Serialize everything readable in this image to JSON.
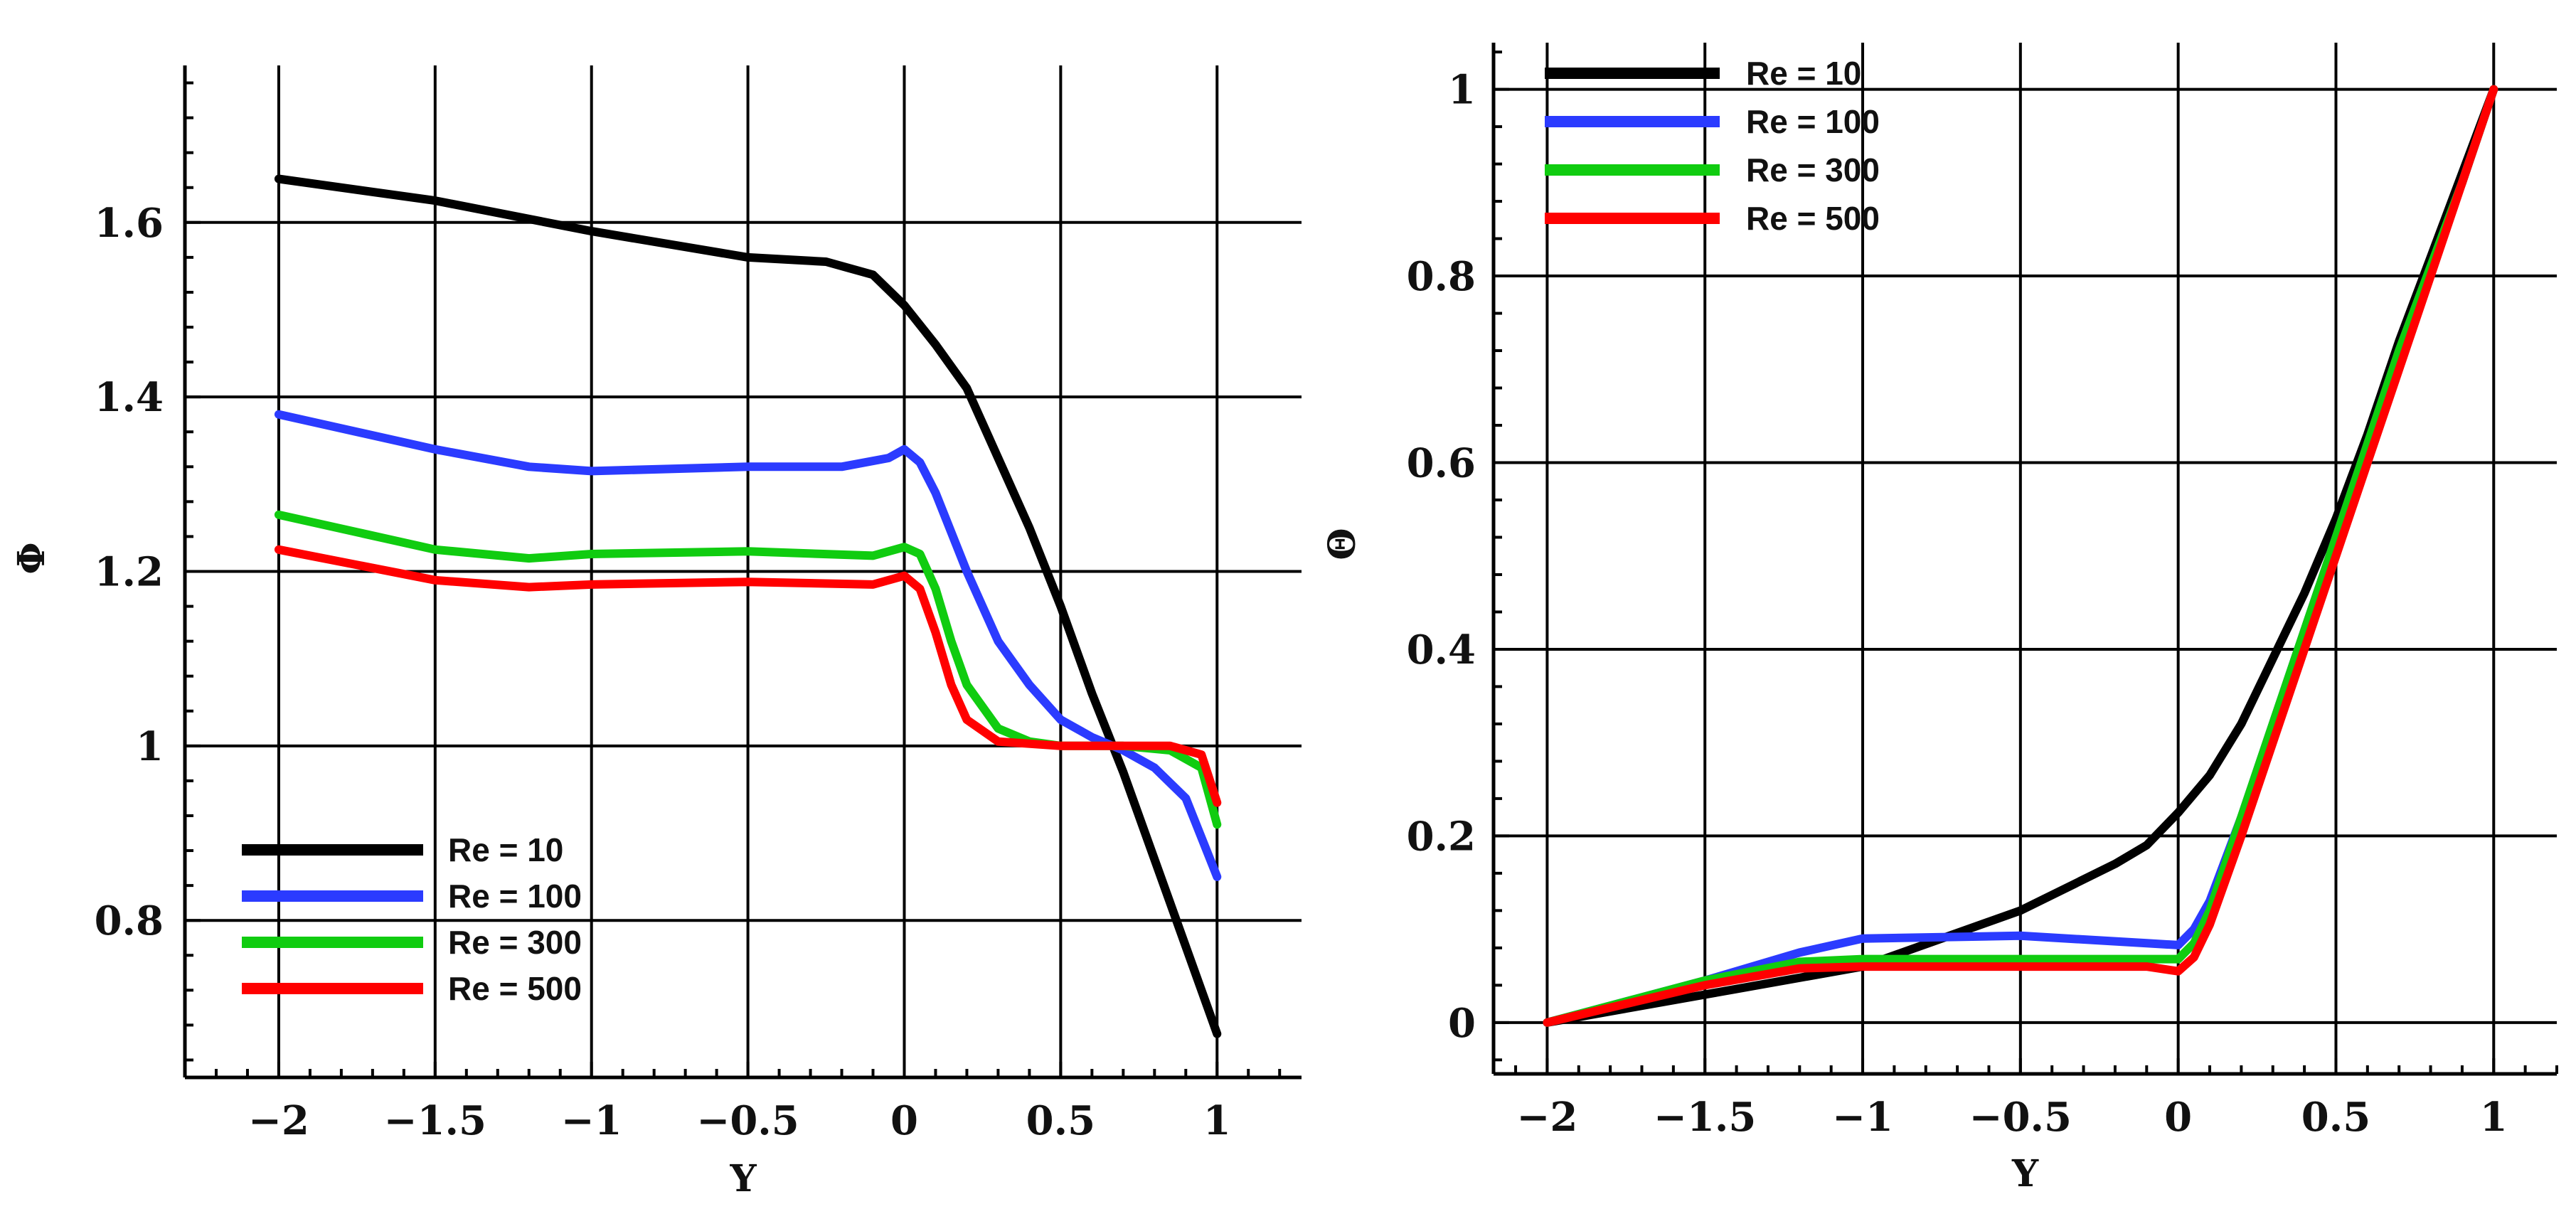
{
  "chart_data": [
    {
      "type": "line",
      "xlabel": "Y",
      "ylabel": "Φ",
      "xlim": [
        -2.3,
        1.27
      ],
      "ylim": [
        0.62,
        1.78
      ],
      "x_ticks": [
        -2,
        -1.5,
        -1,
        -0.5,
        0,
        0.5,
        1
      ],
      "x_tick_labels": [
        "−2",
        "−1.5",
        "−1",
        "−0.5",
        "0",
        "0.5",
        "1"
      ],
      "y_ticks": [
        0.8,
        1,
        1.2,
        1.4,
        1.6
      ],
      "y_tick_labels": [
        "0.8",
        "1",
        "1.2",
        "1.4",
        "1.6"
      ],
      "grid": true,
      "legend_position": "bottom-left",
      "series": [
        {
          "name": "Re = 10",
          "color": "#000000",
          "points": [
            [
              -2,
              1.65
            ],
            [
              -1.5,
              1.625
            ],
            [
              -1,
              1.59
            ],
            [
              -0.5,
              1.56
            ],
            [
              -0.25,
              1.555
            ],
            [
              -0.1,
              1.54
            ],
            [
              0,
              1.505
            ],
            [
              0.1,
              1.46
            ],
            [
              0.2,
              1.41
            ],
            [
              0.3,
              1.33
            ],
            [
              0.4,
              1.25
            ],
            [
              0.5,
              1.16
            ],
            [
              0.6,
              1.06
            ],
            [
              0.7,
              0.97
            ],
            [
              0.8,
              0.87
            ],
            [
              0.9,
              0.77
            ],
            [
              1,
              0.67
            ]
          ]
        },
        {
          "name": "Re = 100",
          "color": "#2b3bff",
          "points": [
            [
              -2,
              1.38
            ],
            [
              -1.5,
              1.34
            ],
            [
              -1.2,
              1.32
            ],
            [
              -1,
              1.315
            ],
            [
              -0.5,
              1.32
            ],
            [
              -0.2,
              1.32
            ],
            [
              -0.05,
              1.33
            ],
            [
              0,
              1.34
            ],
            [
              0.05,
              1.325
            ],
            [
              0.1,
              1.29
            ],
            [
              0.2,
              1.2
            ],
            [
              0.3,
              1.12
            ],
            [
              0.4,
              1.07
            ],
            [
              0.5,
              1.03
            ],
            [
              0.6,
              1.01
            ],
            [
              0.7,
              0.995
            ],
            [
              0.8,
              0.975
            ],
            [
              0.9,
              0.94
            ],
            [
              1,
              0.85
            ]
          ]
        },
        {
          "name": "Re = 300",
          "color": "#10cc10",
          "points": [
            [
              -2,
              1.265
            ],
            [
              -1.5,
              1.225
            ],
            [
              -1.2,
              1.215
            ],
            [
              -1,
              1.22
            ],
            [
              -0.5,
              1.223
            ],
            [
              -0.1,
              1.218
            ],
            [
              0,
              1.228
            ],
            [
              0.05,
              1.22
            ],
            [
              0.1,
              1.18
            ],
            [
              0.15,
              1.12
            ],
            [
              0.2,
              1.07
            ],
            [
              0.3,
              1.02
            ],
            [
              0.4,
              1.005
            ],
            [
              0.5,
              1.0
            ],
            [
              0.7,
              1.0
            ],
            [
              0.85,
              0.995
            ],
            [
              0.95,
              0.975
            ],
            [
              1,
              0.91
            ]
          ]
        },
        {
          "name": "Re = 500",
          "color": "#ff0000",
          "points": [
            [
              -2,
              1.225
            ],
            [
              -1.5,
              1.19
            ],
            [
              -1.2,
              1.182
            ],
            [
              -1,
              1.185
            ],
            [
              -0.5,
              1.188
            ],
            [
              -0.1,
              1.185
            ],
            [
              0,
              1.195
            ],
            [
              0.05,
              1.18
            ],
            [
              0.1,
              1.13
            ],
            [
              0.15,
              1.07
            ],
            [
              0.2,
              1.03
            ],
            [
              0.3,
              1.005
            ],
            [
              0.5,
              1.0
            ],
            [
              0.85,
              1.0
            ],
            [
              0.95,
              0.99
            ],
            [
              1,
              0.935
            ]
          ]
        }
      ]
    },
    {
      "type": "line",
      "xlabel": "Y",
      "ylabel": "Θ",
      "xlim": [
        -2.17,
        1.2
      ],
      "ylim": [
        -0.055,
        1.05
      ],
      "x_ticks": [
        -2,
        -1.5,
        -1,
        -0.5,
        0,
        0.5,
        1
      ],
      "x_tick_labels": [
        "−2",
        "−1.5",
        "−1",
        "−0.5",
        "0",
        "0.5",
        "1"
      ],
      "y_ticks": [
        0,
        0.2,
        0.4,
        0.6,
        0.8,
        1
      ],
      "y_tick_labels": [
        "0",
        "0.2",
        "0.4",
        "0.6",
        "0.8",
        "1"
      ],
      "grid": true,
      "legend_position": "top-left",
      "series": [
        {
          "name": "Re = 10",
          "color": "#000000",
          "points": [
            [
              -2,
              0
            ],
            [
              -1.5,
              0.03
            ],
            [
              -1,
              0.06
            ],
            [
              -0.5,
              0.12
            ],
            [
              -0.2,
              0.17
            ],
            [
              -0.1,
              0.19
            ],
            [
              0,
              0.225
            ],
            [
              0.1,
              0.265
            ],
            [
              0.2,
              0.32
            ],
            [
              0.3,
              0.39
            ],
            [
              0.4,
              0.46
            ],
            [
              0.5,
              0.54
            ],
            [
              0.6,
              0.63
            ],
            [
              0.7,
              0.73
            ],
            [
              0.8,
              0.82
            ],
            [
              0.9,
              0.91
            ],
            [
              1,
              1
            ]
          ]
        },
        {
          "name": "Re = 100",
          "color": "#2b3bff",
          "points": [
            [
              -2,
              0
            ],
            [
              -1.5,
              0.045
            ],
            [
              -1.2,
              0.075
            ],
            [
              -1,
              0.09
            ],
            [
              -0.5,
              0.093
            ],
            [
              -0.1,
              0.085
            ],
            [
              0,
              0.083
            ],
            [
              0.05,
              0.1
            ],
            [
              0.1,
              0.13
            ],
            [
              0.2,
              0.22
            ],
            [
              0.3,
              0.32
            ],
            [
              0.4,
              0.42
            ],
            [
              0.5,
              0.52
            ],
            [
              0.6,
              0.62
            ],
            [
              0.7,
              0.72
            ],
            [
              0.8,
              0.81
            ],
            [
              0.9,
              0.9
            ],
            [
              1,
              1
            ]
          ]
        },
        {
          "name": "Re = 300",
          "color": "#10cc10",
          "points": [
            [
              -2,
              0
            ],
            [
              -1.5,
              0.045
            ],
            [
              -1.2,
              0.065
            ],
            [
              -1,
              0.068
            ],
            [
              -0.5,
              0.068
            ],
            [
              -0.1,
              0.068
            ],
            [
              0,
              0.068
            ],
            [
              0.05,
              0.085
            ],
            [
              0.1,
              0.12
            ],
            [
              0.2,
              0.22
            ],
            [
              0.3,
              0.32
            ],
            [
              0.4,
              0.42
            ],
            [
              0.5,
              0.52
            ],
            [
              0.6,
              0.62
            ],
            [
              0.7,
              0.72
            ],
            [
              0.8,
              0.81
            ],
            [
              0.9,
              0.9
            ],
            [
              1,
              1
            ]
          ]
        },
        {
          "name": "Re = 500",
          "color": "#ff0000",
          "points": [
            [
              -2,
              0
            ],
            [
              -1.5,
              0.04
            ],
            [
              -1.2,
              0.058
            ],
            [
              -1,
              0.06
            ],
            [
              -0.5,
              0.06
            ],
            [
              -0.1,
              0.06
            ],
            [
              0,
              0.055
            ],
            [
              0.05,
              0.07
            ],
            [
              0.1,
              0.105
            ],
            [
              0.2,
              0.2
            ],
            [
              0.3,
              0.3
            ],
            [
              0.4,
              0.4
            ],
            [
              0.5,
              0.5
            ],
            [
              0.6,
              0.6
            ],
            [
              0.7,
              0.7
            ],
            [
              0.8,
              0.8
            ],
            [
              0.9,
              0.9
            ],
            [
              1,
              1
            ]
          ]
        }
      ]
    }
  ]
}
